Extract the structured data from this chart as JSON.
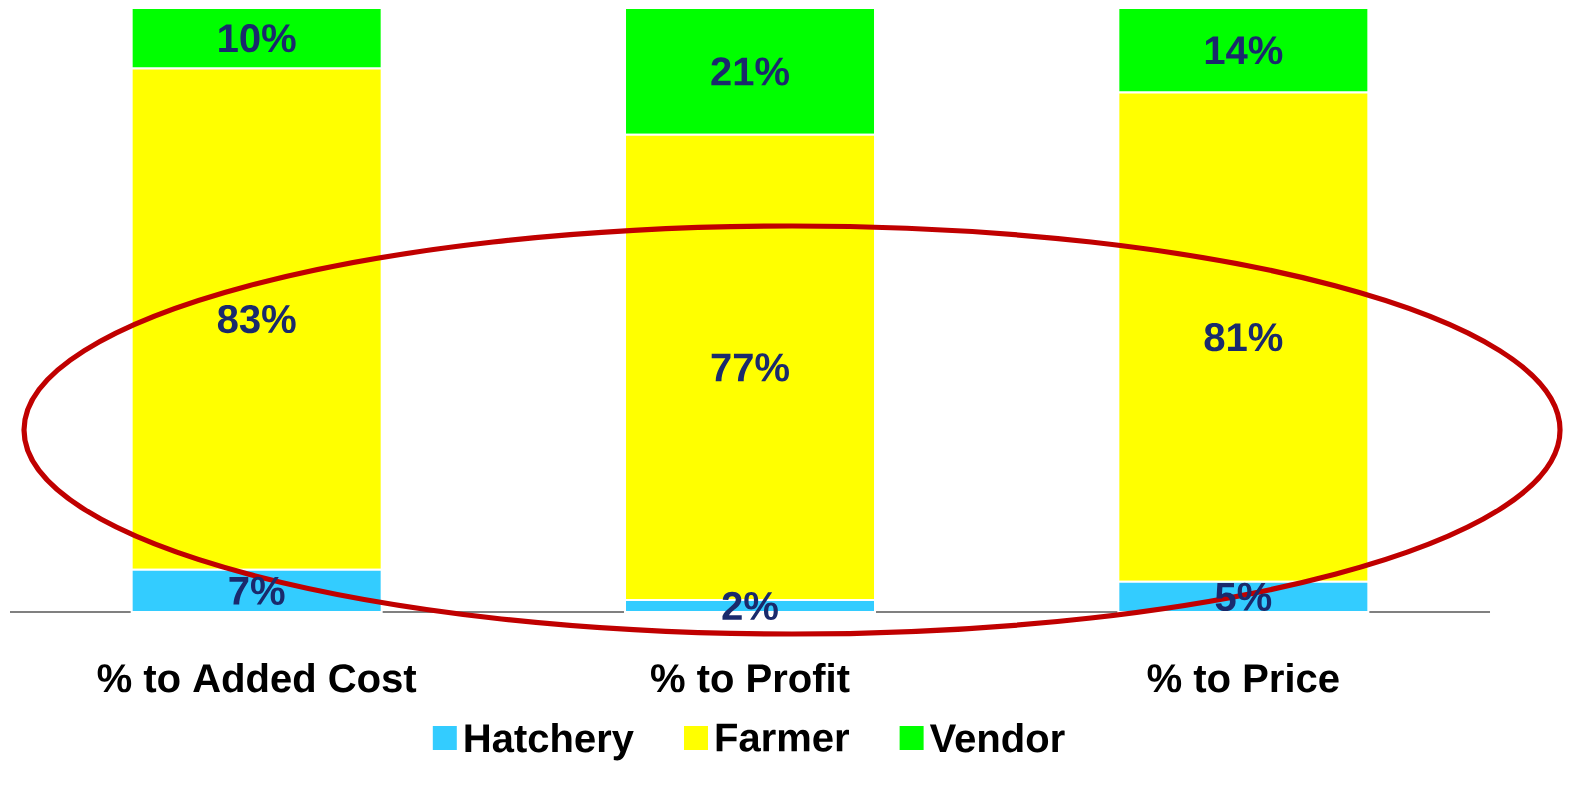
{
  "chart_data": {
    "type": "bar",
    "stacked": true,
    "categories": [
      "% to Added Cost",
      "% to Profit",
      "% to Price"
    ],
    "series": [
      {
        "name": "Hatchery",
        "color": "#33ccff",
        "values": [
          7,
          2,
          5
        ],
        "value_labels": [
          "7%",
          "2%",
          "5%"
        ]
      },
      {
        "name": "Farmer",
        "color": "#ffff00",
        "values": [
          83,
          77,
          81
        ],
        "value_labels": [
          "83%",
          "77%",
          "81%"
        ]
      },
      {
        "name": "Vendor",
        "color": "#00ff00",
        "values": [
          10,
          21,
          14
        ],
        "value_labels": [
          "10%",
          "21%",
          "14%"
        ]
      }
    ],
    "legend": "bottom"
  }
}
